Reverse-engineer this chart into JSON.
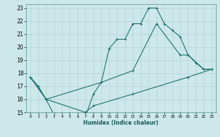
{
  "title": "",
  "xlabel": "Humidex (Indice chaleur)",
  "bg_color": "#cde8ea",
  "grid_color": "#b8d4d6",
  "line_color": "#1a6e6a",
  "xlim": [
    -0.5,
    23.5
  ],
  "ylim": [
    15,
    23.3
  ],
  "yticks": [
    15,
    16,
    17,
    18,
    19,
    20,
    21,
    22,
    23
  ],
  "xticks": [
    0,
    1,
    2,
    3,
    4,
    5,
    6,
    7,
    8,
    9,
    10,
    11,
    12,
    13,
    14,
    15,
    16,
    17,
    18,
    19,
    20,
    21,
    22,
    23
  ],
  "line1_x": [
    0,
    1,
    2,
    3,
    4,
    5,
    6,
    7,
    8,
    9,
    10,
    11,
    12,
    13,
    14,
    15,
    16,
    17,
    18,
    19,
    20,
    21,
    22,
    23
  ],
  "line1_y": [
    17.7,
    17.0,
    16.0,
    14.8,
    14.8,
    14.8,
    14.8,
    14.7,
    16.4,
    17.3,
    19.9,
    20.6,
    20.6,
    21.8,
    21.8,
    23.0,
    23.0,
    21.8,
    21.3,
    20.8,
    19.4,
    18.8,
    18.3,
    18.3
  ],
  "line2_x": [
    0,
    2,
    9,
    13,
    16,
    19,
    20,
    22,
    23
  ],
  "line2_y": [
    17.7,
    16.0,
    17.3,
    18.2,
    21.8,
    19.4,
    19.4,
    18.3,
    18.3
  ],
  "line3_x": [
    0,
    2,
    7,
    8,
    13,
    20,
    23
  ],
  "line3_y": [
    17.7,
    16.0,
    15.0,
    15.5,
    16.4,
    17.7,
    18.3
  ]
}
